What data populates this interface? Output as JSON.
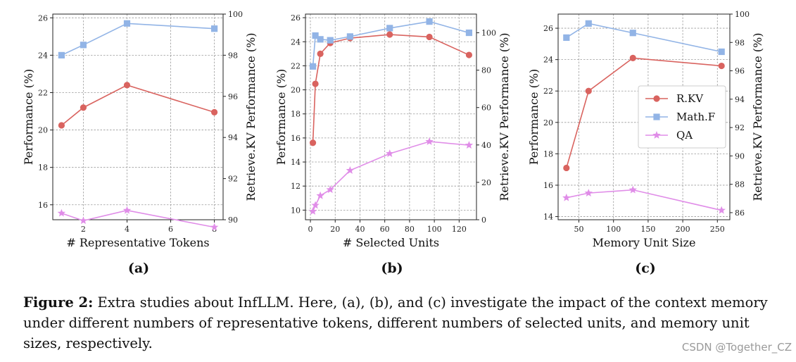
{
  "colors": {
    "rkv": "#d9635f",
    "mathf": "#92b4e6",
    "qa": "#e08de8",
    "grid": "#9a9a9a"
  },
  "legend": {
    "rkv": "R.KV",
    "mathf": "Math.F",
    "qa": "QA"
  },
  "chart_data": [
    {
      "id": "a",
      "type": "line",
      "panel_label": "(a)",
      "xlabel": "# Representative Tokens",
      "ylabel": "Performance (%)",
      "y2label": "Retrieve.KV Performance (%)",
      "xlim": [
        0.6,
        8.4
      ],
      "ylim": [
        15.2,
        26.2
      ],
      "y2lim": [
        90,
        100
      ],
      "xticks": [
        2,
        4,
        6,
        8
      ],
      "yticks": [
        16,
        18,
        20,
        22,
        24,
        26
      ],
      "y2ticks": [
        90,
        92,
        94,
        96,
        98,
        100
      ],
      "x": [
        1,
        2,
        4,
        8
      ],
      "series": [
        {
          "key": "rkv",
          "name": "R.KV",
          "axis": "left",
          "marker": "circle",
          "values": [
            20.25,
            21.2,
            22.4,
            20.95
          ]
        },
        {
          "key": "mathf",
          "name": "Math.F",
          "axis": "left",
          "marker": "square",
          "values": [
            24.0,
            24.55,
            25.7,
            25.42
          ]
        },
        {
          "key": "qa",
          "name": "QA",
          "axis": "left",
          "marker": "star",
          "values": [
            15.55,
            15.15,
            15.7,
            14.8
          ]
        }
      ],
      "legend": false
    },
    {
      "id": "b",
      "type": "line",
      "panel_label": "(b)",
      "xlabel": "# Selected Units",
      "ylabel": "Performance (%)",
      "y2label": "Retrieve.KV Performance (%)",
      "xlim": [
        -4,
        134
      ],
      "ylim": [
        9.2,
        26.3
      ],
      "y2lim": [
        0,
        110
      ],
      "xticks": [
        0,
        20,
        40,
        60,
        80,
        100,
        120
      ],
      "yticks": [
        10,
        12,
        14,
        16,
        18,
        20,
        22,
        24,
        26
      ],
      "y2ticks": [
        0,
        20,
        40,
        60,
        80,
        100
      ],
      "x": [
        2,
        4,
        8,
        16,
        32,
        64,
        96,
        128
      ],
      "series": [
        {
          "key": "rkv",
          "name": "R.KV",
          "axis": "left",
          "marker": "circle",
          "values": [
            15.6,
            20.5,
            23.0,
            23.9,
            24.3,
            24.6,
            24.4,
            22.9
          ]
        },
        {
          "key": "mathf",
          "name": "Math.F",
          "axis": "right",
          "marker": "square",
          "values": [
            82,
            98.5,
            96.5,
            96,
            98,
            102.5,
            106,
            100
          ]
        },
        {
          "key": "qa",
          "name": "QA",
          "axis": "left",
          "marker": "star",
          "values": [
            9.9,
            10.4,
            11.2,
            11.7,
            13.3,
            14.7,
            15.7,
            15.4
          ]
        }
      ],
      "legend": false
    },
    {
      "id": "c",
      "type": "line",
      "panel_label": "(c)",
      "xlabel": "Memory Unit Size",
      "ylabel": "Performance (%)",
      "y2label": "Retrieve.KV Performance (%)",
      "xlim": [
        20,
        268
      ],
      "ylim": [
        13.8,
        26.9
      ],
      "y2lim": [
        85.5,
        100
      ],
      "xticks": [
        50,
        100,
        150,
        200,
        250
      ],
      "yticks": [
        14,
        16,
        18,
        20,
        22,
        24,
        26
      ],
      "y2ticks": [
        86,
        88,
        90,
        92,
        94,
        96,
        98,
        100
      ],
      "x": [
        32,
        64,
        128,
        256
      ],
      "series": [
        {
          "key": "rkv",
          "name": "R.KV",
          "axis": "left",
          "marker": "circle",
          "values": [
            17.1,
            22.0,
            24.1,
            23.6
          ]
        },
        {
          "key": "mathf",
          "name": "Math.F",
          "axis": "left",
          "marker": "square",
          "values": [
            25.4,
            26.3,
            25.7,
            24.5
          ]
        },
        {
          "key": "qa",
          "name": "QA",
          "axis": "left",
          "marker": "star",
          "values": [
            15.2,
            15.5,
            15.7,
            14.4
          ]
        }
      ],
      "legend": true,
      "legend_position": "center-right"
    }
  ],
  "caption": {
    "bold": "Figure 2:",
    "text": " Extra studies about InfLLM. Here, (a), (b), and (c) investigate the impact of the context memory under different numbers of representative tokens, different numbers of selected units, and memory unit sizes, respectively."
  },
  "watermark": "CSDN @Together_CZ"
}
